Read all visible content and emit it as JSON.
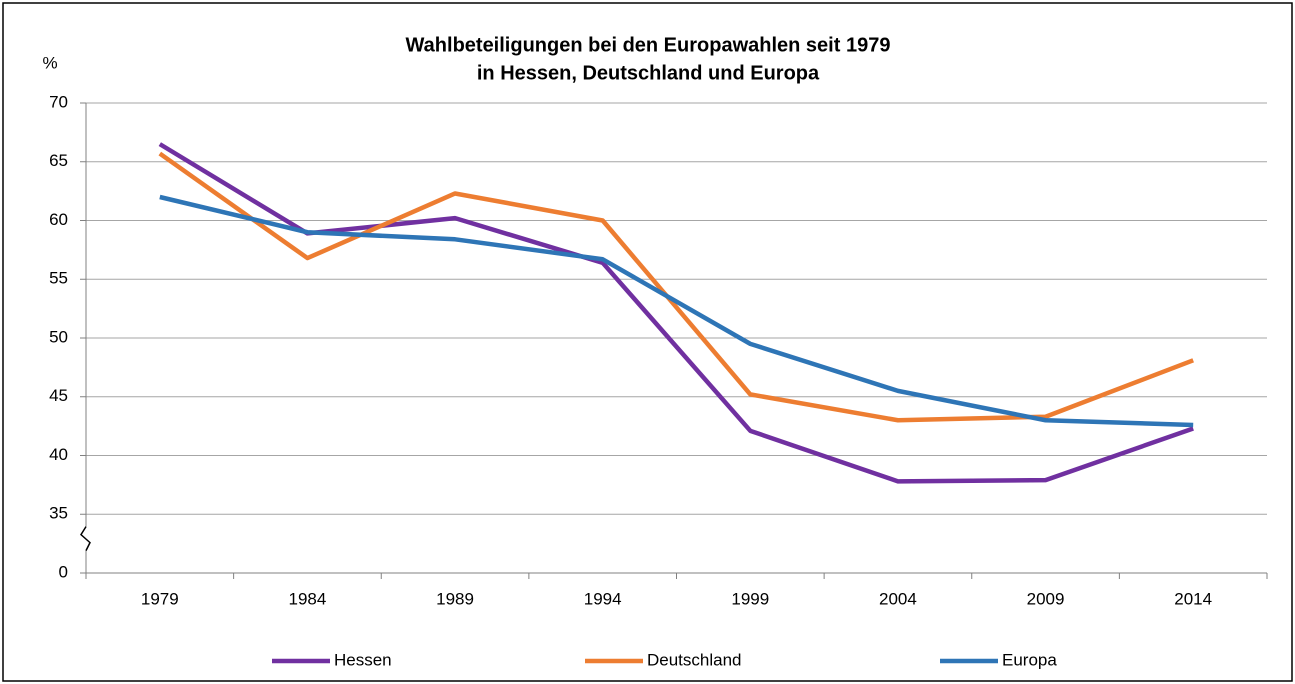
{
  "chart_data": {
    "type": "line",
    "title": [
      "Wahlbeteiligungen bei den Europawahlen seit 1979",
      "in Hessen, Deutschland und Europa"
    ],
    "y_label": "%",
    "categories": [
      "1979",
      "1984",
      "1989",
      "1994",
      "1999",
      "2004",
      "2009",
      "2014"
    ],
    "series": [
      {
        "name": "Hessen",
        "color": "#7030a0",
        "values": [
          66.5,
          58.9,
          60.2,
          56.4,
          42.1,
          37.8,
          37.9,
          42.3
        ]
      },
      {
        "name": "Deutschland",
        "color": "#ed7d31",
        "values": [
          65.7,
          56.8,
          62.3,
          60.0,
          45.2,
          43.0,
          43.3,
          48.1
        ]
      },
      {
        "name": "Europa",
        "color": "#2e75b6",
        "values": [
          62.0,
          59.0,
          58.4,
          56.7,
          49.5,
          45.5,
          43.0,
          42.6
        ]
      }
    ],
    "ylim": [
      0,
      70
    ],
    "yticks": [
      0,
      35,
      40,
      45,
      50,
      55,
      60,
      65,
      70
    ],
    "axis_break": true,
    "grid": true,
    "legend": "bottom"
  }
}
